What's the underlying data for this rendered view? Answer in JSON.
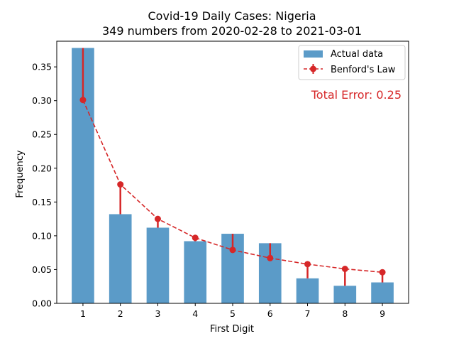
{
  "chart_data": {
    "type": "bar",
    "title": "Covid-19 Daily Cases: Nigeria",
    "subtitle": "349 numbers from 2020-02-28 to 2021-03-01",
    "xlabel": "First Digit",
    "ylabel": "Frequency",
    "categories": [
      "1",
      "2",
      "3",
      "4",
      "5",
      "6",
      "7",
      "8",
      "9"
    ],
    "ylim": [
      0,
      0.388
    ],
    "yticks": [
      0.0,
      0.05,
      0.1,
      0.15,
      0.2,
      0.25,
      0.3,
      0.35
    ],
    "ytick_labels": [
      "0.00",
      "0.05",
      "0.10",
      "0.15",
      "0.20",
      "0.25",
      "0.30",
      "0.35"
    ],
    "grid": false,
    "legend_position": "top-right",
    "series": [
      {
        "name": "Actual data",
        "type": "bar",
        "color": "#5b9bc8",
        "values": [
          0.378,
          0.132,
          0.112,
          0.092,
          0.103,
          0.089,
          0.037,
          0.026,
          0.031
        ]
      },
      {
        "name": "Benford's Law",
        "type": "line",
        "color": "#d62728",
        "values": [
          0.301,
          0.176,
          0.125,
          0.097,
          0.079,
          0.067,
          0.058,
          0.051,
          0.046
        ]
      }
    ],
    "annotation": "Total Error: 0.25",
    "annotation_color": "#d62728"
  }
}
